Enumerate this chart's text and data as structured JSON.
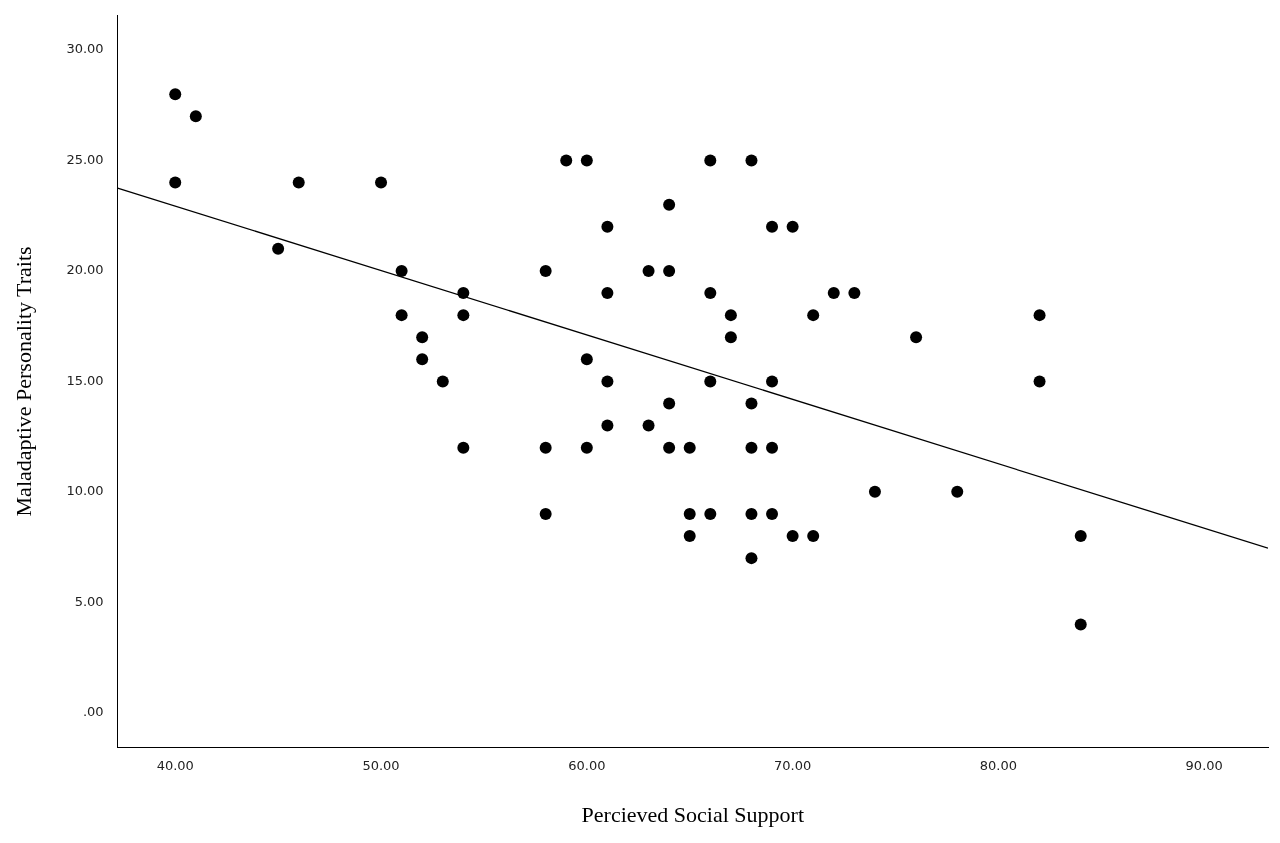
{
  "chart_data": {
    "type": "scatter",
    "xlabel": "Percieved Social Support",
    "ylabel": "Maladaptive Personality Traits",
    "xlim": [
      37.2,
      93.1
    ],
    "ylim": [
      -1.55,
      31.55
    ],
    "xticks": [
      {
        "value": 40,
        "label": "40.00"
      },
      {
        "value": 50,
        "label": "50.00"
      },
      {
        "value": 60,
        "label": "60.00"
      },
      {
        "value": 70,
        "label": "70.00"
      },
      {
        "value": 80,
        "label": "80.00"
      },
      {
        "value": 90,
        "label": "90.00"
      }
    ],
    "yticks": [
      {
        "value": 0,
        "label": ".00"
      },
      {
        "value": 5,
        "label": "5.00"
      },
      {
        "value": 10,
        "label": "10.00"
      },
      {
        "value": 15,
        "label": "15.00"
      },
      {
        "value": 20,
        "label": "20.00"
      },
      {
        "value": 25,
        "label": "25.00"
      },
      {
        "value": 30,
        "label": "30.00"
      }
    ],
    "grid": false,
    "legend": false,
    "marker": "circle",
    "series": [
      {
        "color": "#000000",
        "x": [
          40,
          41,
          40,
          46,
          50,
          45,
          51,
          51,
          52,
          52,
          53,
          54,
          54,
          54,
          58,
          58,
          58,
          59,
          60,
          60,
          60,
          61,
          61,
          61,
          61,
          63,
          63,
          64,
          64,
          64,
          64,
          65,
          65,
          65,
          66,
          66,
          66,
          66,
          67,
          67,
          68,
          68,
          68,
          68,
          68,
          69,
          69,
          69,
          69,
          70,
          70,
          71,
          71,
          72,
          73,
          74,
          76,
          78,
          82,
          82,
          84,
          84
        ],
        "values": [
          28,
          27,
          24,
          24,
          24,
          21,
          20,
          18,
          17,
          16,
          15,
          19,
          18,
          12,
          20,
          12,
          9,
          25,
          25,
          16,
          12,
          22,
          19,
          15,
          13,
          20,
          13,
          23,
          20,
          14,
          12,
          12,
          9,
          8,
          25,
          19,
          15,
          9,
          18,
          17,
          25,
          14,
          12,
          9,
          7,
          22,
          15,
          12,
          9,
          22,
          8,
          18,
          8,
          19,
          19,
          10,
          17,
          10,
          18,
          15,
          8,
          4
        ]
      },
      {
        "type": "line",
        "color": "#000000",
        "marker": "none",
        "x": [
          37.2,
          93.1
        ],
        "values": [
          23.75,
          7.45
        ]
      }
    ]
  }
}
